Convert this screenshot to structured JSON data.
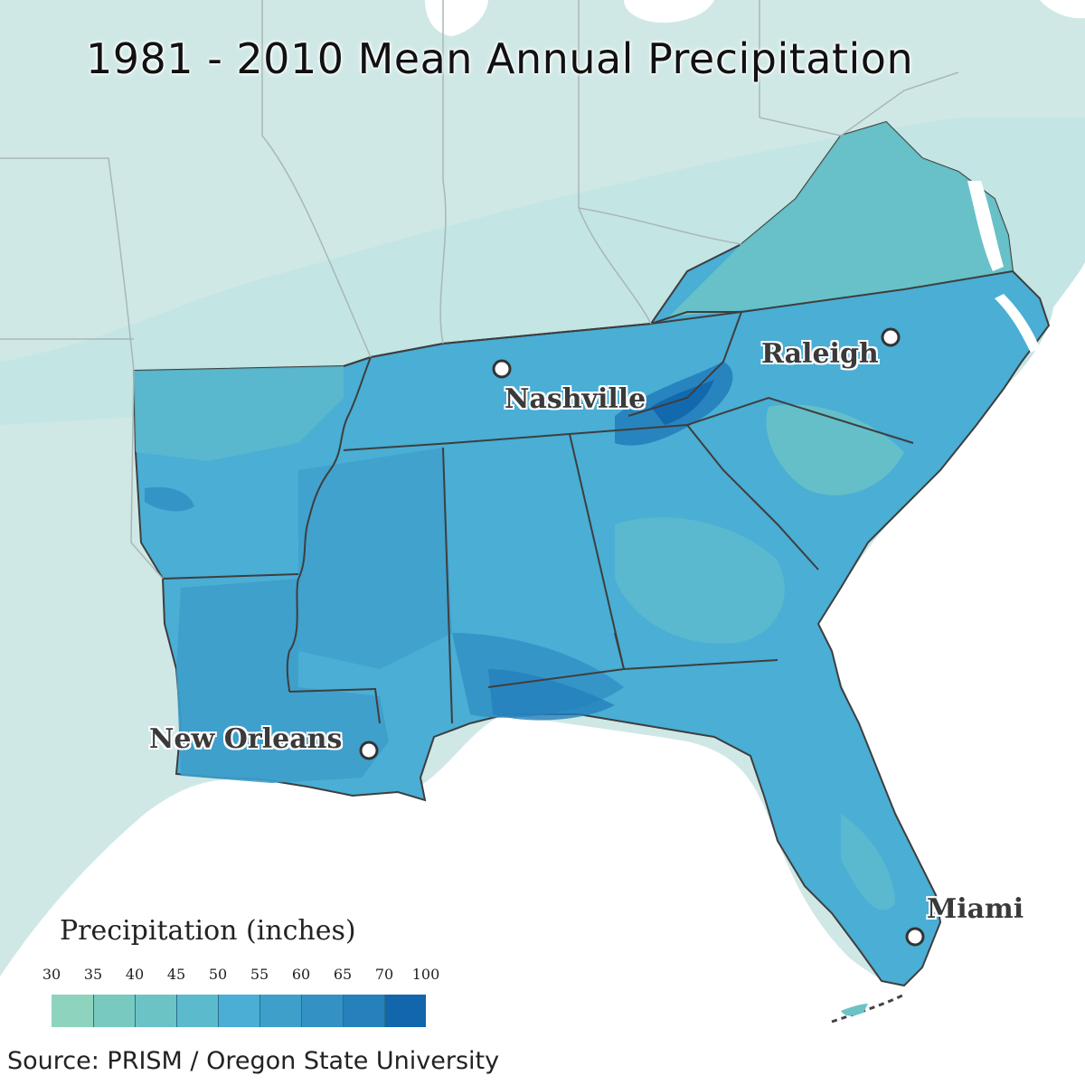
{
  "title": "1981 - 2010 Mean Annual Precipitation",
  "cities": [
    {
      "name": "Nashville"
    },
    {
      "name": "Raleigh"
    },
    {
      "name": "New Orleans"
    },
    {
      "name": "Miami"
    }
  ],
  "legend": {
    "title": "Precipitation (inches)",
    "ticks": [
      "30",
      "35",
      "40",
      "45",
      "50",
      "55",
      "60",
      "65",
      "70",
      "100"
    ],
    "colors": [
      "#8ed3bd",
      "#78c9c0",
      "#6cc3c6",
      "#5cbacd",
      "#4aaed5",
      "#3e9fcb",
      "#3391c4",
      "#2580bb",
      "#1166ac"
    ]
  },
  "source": "Source: PRISM / Oregon State University",
  "colors": {
    "background_land": "#cfe8e6",
    "ocean": "#ffffff",
    "state_border": "#444444",
    "outer_state_border": "#a9b7b6",
    "city_marker_fill": "#ffffff",
    "city_marker_stroke": "#333333"
  }
}
